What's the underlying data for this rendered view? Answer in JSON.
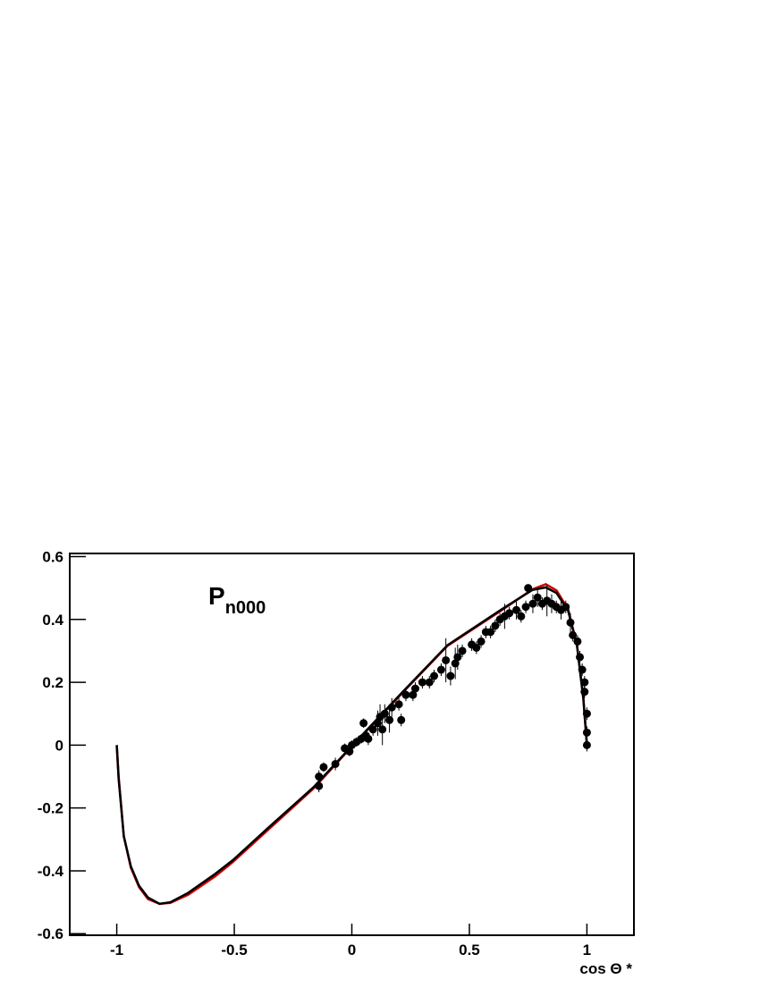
{
  "chart_data": {
    "type": "scatter",
    "annotation": {
      "text": "P",
      "subscript": "n000"
    },
    "x_label": "cos Θ *",
    "xlim": [
      -1.2,
      1.2
    ],
    "ylim": [
      -0.605,
      0.61
    ],
    "xticks": [
      -1,
      -0.5,
      0,
      0.5,
      1
    ],
    "yticks": [
      -0.6,
      -0.4,
      -0.2,
      0,
      0.2,
      0.4,
      0.6
    ],
    "grid": false,
    "series": [
      {
        "type": "line",
        "color": "#cc0000",
        "x": [
          -1,
          -0.992,
          -0.97,
          -0.94,
          -0.905,
          -0.867,
          -0.818,
          -0.772,
          -0.696,
          -0.582,
          -0.506,
          -0.354,
          -0.163,
          -0.004,
          0.217,
          0.407,
          0.635,
          0.768,
          0.825,
          0.871,
          0.92,
          0.958,
          0.985,
          1
        ],
        "values": [
          0,
          -0.1,
          -0.29,
          -0.39,
          -0.452,
          -0.49,
          -0.505,
          -0.502,
          -0.476,
          -0.418,
          -0.372,
          -0.268,
          -0.138,
          -0.008,
          0.168,
          0.316,
          0.428,
          0.496,
          0.512,
          0.492,
          0.433,
          0.318,
          0.147,
          0
        ]
      },
      {
        "type": "line",
        "color": "#000000",
        "x": [
          -1,
          -0.992,
          -0.97,
          -0.94,
          -0.905,
          -0.867,
          -0.818,
          -0.772,
          -0.696,
          -0.582,
          -0.506,
          -0.354,
          -0.163,
          -0.004,
          0.217,
          0.407,
          0.635,
          0.768,
          0.825,
          0.871,
          0.92,
          0.958,
          0.985,
          1
        ],
        "values": [
          0,
          -0.108,
          -0.29,
          -0.386,
          -0.448,
          -0.485,
          -0.505,
          -0.5,
          -0.47,
          -0.41,
          -0.366,
          -0.262,
          -0.134,
          -0.006,
          0.17,
          0.318,
          0.431,
          0.494,
          0.502,
          0.484,
          0.428,
          0.316,
          0.147,
          0
        ]
      },
      {
        "type": "errorbar",
        "color": "#000000",
        "x": [
          -0.14,
          -0.14,
          -0.12,
          -0.07,
          -0.03,
          -0.01,
          0.0,
          0.02,
          0.04,
          0.05,
          0.06,
          0.07,
          0.09,
          0.11,
          0.12,
          0.13,
          0.14,
          0.16,
          0.17,
          0.2,
          0.21,
          0.23,
          0.26,
          0.27,
          0.3,
          0.33,
          0.35,
          0.38,
          0.4,
          0.42,
          0.44,
          0.45,
          0.47,
          0.51,
          0.53,
          0.55,
          0.57,
          0.59,
          0.61,
          0.63,
          0.65,
          0.67,
          0.7,
          0.72,
          0.74,
          0.75,
          0.77,
          0.79,
          0.81,
          0.83,
          0.85,
          0.87,
          0.89,
          0.91,
          0.93,
          0.94,
          0.96,
          0.97,
          0.98,
          0.99,
          0.99,
          1.0,
          1.0,
          1.0
        ],
        "values": [
          -0.13,
          -0.1,
          -0.07,
          -0.06,
          -0.01,
          -0.02,
          0.0,
          0.01,
          0.02,
          0.07,
          0.03,
          0.02,
          0.05,
          0.07,
          0.09,
          0.05,
          0.1,
          0.08,
          0.12,
          0.13,
          0.08,
          0.16,
          0.16,
          0.18,
          0.2,
          0.2,
          0.22,
          0.24,
          0.27,
          0.22,
          0.26,
          0.28,
          0.3,
          0.32,
          0.31,
          0.33,
          0.36,
          0.36,
          0.38,
          0.4,
          0.41,
          0.42,
          0.43,
          0.41,
          0.44,
          0.5,
          0.45,
          0.47,
          0.45,
          0.46,
          0.45,
          0.44,
          0.43,
          0.44,
          0.39,
          0.35,
          0.33,
          0.28,
          0.24,
          0.2,
          0.17,
          0.1,
          0.04,
          0.0
        ],
        "errors": [
          0.02,
          0.02,
          0.015,
          0.02,
          0.015,
          0.015,
          0.015,
          0.015,
          0.015,
          0.015,
          0.02,
          0.02,
          0.02,
          0.04,
          0.04,
          0.05,
          0.03,
          0.04,
          0.03,
          0.02,
          0.02,
          0.02,
          0.02,
          0.02,
          0.02,
          0.02,
          0.02,
          0.02,
          0.07,
          0.03,
          0.05,
          0.04,
          0.02,
          0.02,
          0.02,
          0.02,
          0.02,
          0.02,
          0.02,
          0.02,
          0.04,
          0.02,
          0.03,
          0.02,
          0.02,
          0.01,
          0.03,
          0.03,
          0.02,
          0.05,
          0.03,
          0.02,
          0.03,
          0.02,
          0.03,
          0.02,
          0.02,
          0.02,
          0.02,
          0.02,
          0.02,
          0.02,
          0.02,
          0.02
        ]
      }
    ]
  }
}
